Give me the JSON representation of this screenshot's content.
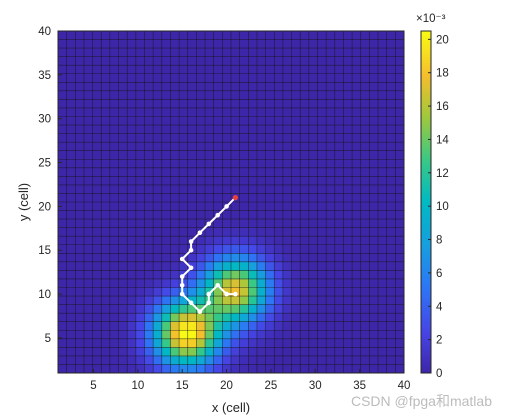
{
  "chart_data": {
    "type": "heatmap",
    "xlabel": "x (cell)",
    "ylabel": "y (cell)",
    "xlim": [
      1,
      40
    ],
    "ylim": [
      1,
      40
    ],
    "xticks": [
      5,
      10,
      15,
      20,
      25,
      30,
      35,
      40
    ],
    "yticks": [
      5,
      10,
      15,
      20,
      25,
      30,
      35,
      40
    ],
    "grid_cells": 40,
    "colormap": "parula",
    "colorbar": {
      "min": 0,
      "max": 0.0205,
      "exponent_label": "×10⁻³",
      "ticks": [
        0,
        2,
        4,
        6,
        8,
        10,
        12,
        14,
        16,
        18,
        20
      ]
    },
    "field_peaks": [
      {
        "x": 15.5,
        "y": 5.5,
        "value": 0.0205
      },
      {
        "x": 21,
        "y": 10.5,
        "value": 0.0175
      }
    ],
    "path": {
      "color": "#ffffff",
      "start_color": "#e8403c",
      "points": [
        [
          21,
          21
        ],
        [
          20,
          20
        ],
        [
          19,
          19
        ],
        [
          18,
          18
        ],
        [
          17,
          17
        ],
        [
          16,
          16
        ],
        [
          16,
          15
        ],
        [
          15,
          14
        ],
        [
          16,
          13
        ],
        [
          15,
          12
        ],
        [
          15,
          11
        ],
        [
          15,
          10
        ],
        [
          16,
          9
        ],
        [
          17,
          8
        ],
        [
          18,
          9
        ],
        [
          18,
          10
        ],
        [
          19,
          11
        ],
        [
          20,
          10
        ],
        [
          21,
          10
        ]
      ]
    }
  },
  "watermark": "CSDN @fpga和matlab"
}
